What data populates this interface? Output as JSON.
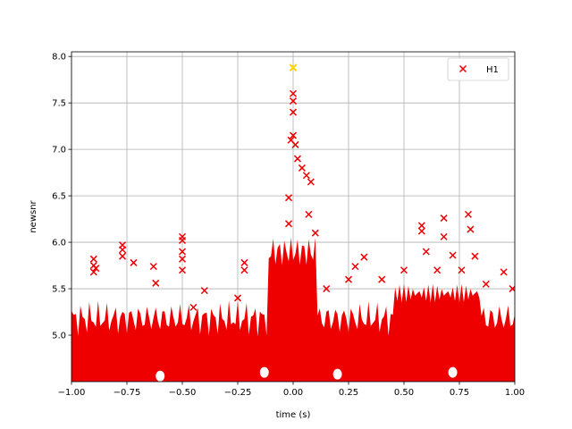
{
  "chart_data": {
    "type": "scatter",
    "title": "",
    "xlabel": "time (s)",
    "ylabel": "newsnr",
    "xlim": [
      -1.0,
      1.0
    ],
    "ylim": [
      4.5,
      8.05
    ],
    "grid": true,
    "legend_position": "top-right",
    "x_ticks": [
      "-1.00",
      "-0.75",
      "-0.50",
      "-0.25",
      "0.00",
      "0.25",
      "0.50",
      "0.75",
      "1.00"
    ],
    "y_ticks": [
      "5.0",
      "5.5",
      "6.0",
      "6.5",
      "7.0",
      "7.5",
      "8.0"
    ],
    "series": [
      {
        "name": "H1",
        "marker": "x",
        "color": "#ee0000",
        "points": [
          [
            -0.9,
            5.82
          ],
          [
            -0.9,
            5.75
          ],
          [
            -0.9,
            5.68
          ],
          [
            -0.89,
            5.72
          ],
          [
            -0.77,
            5.97
          ],
          [
            -0.77,
            5.92
          ],
          [
            -0.77,
            5.85
          ],
          [
            -0.72,
            5.78
          ],
          [
            -0.63,
            5.74
          ],
          [
            -0.62,
            5.56
          ],
          [
            -0.5,
            6.06
          ],
          [
            -0.5,
            6.02
          ],
          [
            -0.5,
            5.9
          ],
          [
            -0.5,
            5.82
          ],
          [
            -0.5,
            5.7
          ],
          [
            -0.45,
            5.3
          ],
          [
            -0.4,
            5.48
          ],
          [
            -0.25,
            5.4
          ],
          [
            -0.22,
            5.78
          ],
          [
            -0.22,
            5.7
          ],
          [
            -0.07,
            5.4
          ],
          [
            -0.07,
            5.3
          ],
          [
            -0.02,
            6.2
          ],
          [
            -0.02,
            6.48
          ],
          [
            0.0,
            7.88
          ],
          [
            0.0,
            7.6
          ],
          [
            0.0,
            7.52
          ],
          [
            0.0,
            7.4
          ],
          [
            0.0,
            7.15
          ],
          [
            -0.01,
            7.1
          ],
          [
            0.01,
            7.05
          ],
          [
            0.02,
            6.9
          ],
          [
            0.04,
            6.8
          ],
          [
            0.06,
            6.72
          ],
          [
            0.08,
            6.65
          ],
          [
            0.07,
            6.3
          ],
          [
            0.1,
            6.1
          ],
          [
            0.15,
            5.5
          ],
          [
            0.25,
            5.6
          ],
          [
            0.28,
            5.74
          ],
          [
            0.32,
            5.84
          ],
          [
            0.4,
            5.6
          ],
          [
            0.5,
            5.7
          ],
          [
            0.58,
            6.18
          ],
          [
            0.58,
            6.12
          ],
          [
            0.6,
            5.9
          ],
          [
            0.65,
            5.7
          ],
          [
            0.68,
            6.26
          ],
          [
            0.68,
            6.06
          ],
          [
            0.72,
            5.86
          ],
          [
            0.76,
            5.7
          ],
          [
            0.79,
            6.3
          ],
          [
            0.8,
            6.14
          ],
          [
            0.82,
            5.85
          ],
          [
            0.87,
            5.55
          ],
          [
            0.95,
            5.68
          ],
          [
            0.99,
            5.5
          ]
        ]
      }
    ],
    "highlight": {
      "x": 0.0,
      "y": 7.88,
      "marker": "x",
      "color": "#ffd700"
    }
  }
}
